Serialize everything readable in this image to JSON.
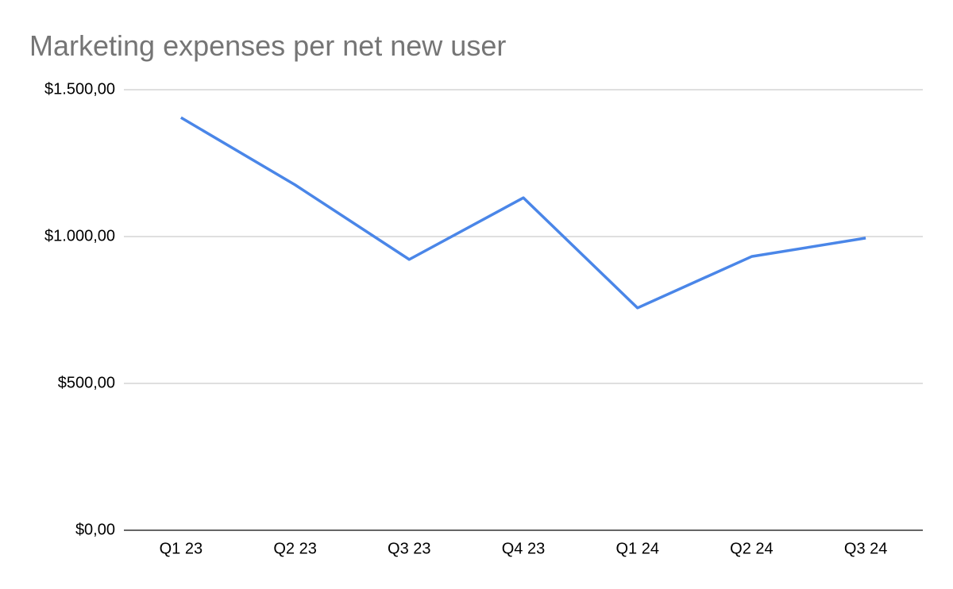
{
  "chart_data": {
    "type": "line",
    "title": "Marketing expenses per net new user",
    "categories": [
      "Q1 23",
      "Q2 23",
      "Q3 23",
      "Q4 23",
      "Q1 24",
      "Q2 24",
      "Q3 24"
    ],
    "values": [
      1405,
      1176,
      922,
      1132,
      757,
      932,
      995
    ],
    "color": "#4a86e8",
    "ylim": [
      0,
      1500
    ],
    "yticks": [
      {
        "value": 0,
        "label": "$0,00"
      },
      {
        "value": 500,
        "label": "$500,00"
      },
      {
        "value": 1000,
        "label": "$1.000,00"
      },
      {
        "value": 1500,
        "label": "$1.500,00"
      }
    ],
    "grid": true
  }
}
